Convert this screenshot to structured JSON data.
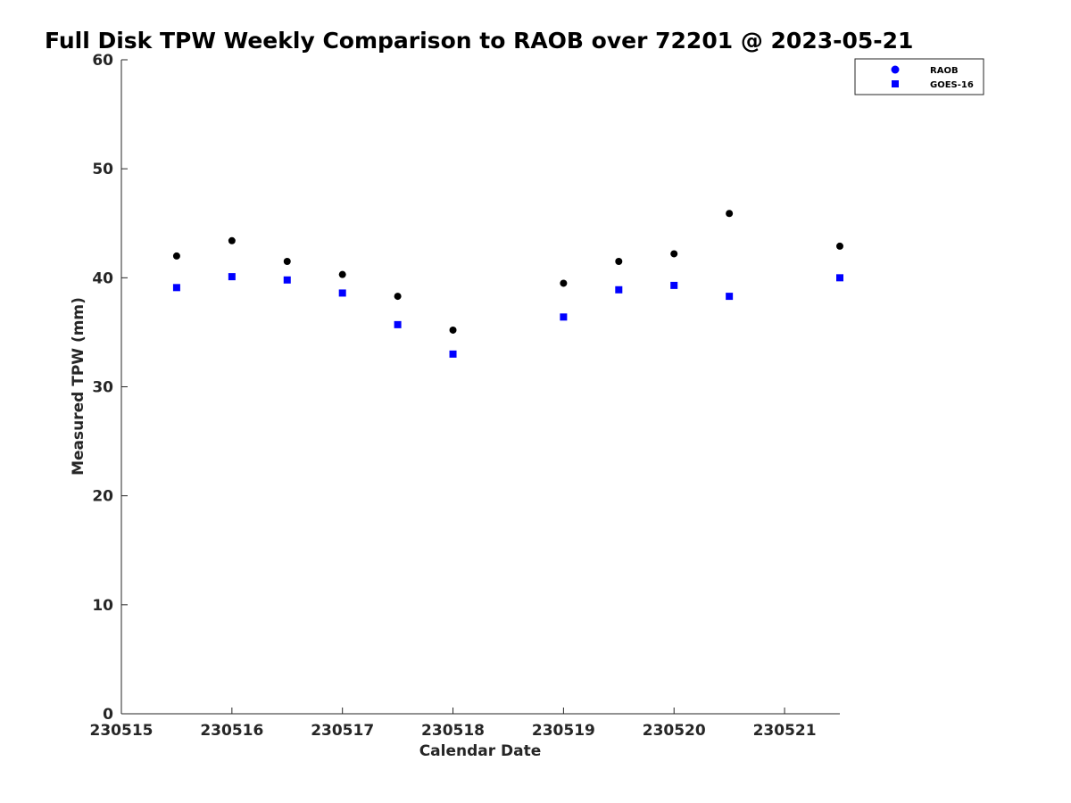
{
  "chart_data": {
    "type": "scatter",
    "title": "Full Disk TPW Weekly Comparison to RAOB over 72201 @ 2023-05-21",
    "xlabel": "Calendar Date",
    "ylabel": "Measured TPW (mm)",
    "xlim": [
      230515,
      230521.5
    ],
    "ylim": [
      0,
      60
    ],
    "x_ticks": [
      230515,
      230516,
      230517,
      230518,
      230519,
      230520,
      230521
    ],
    "x_tick_labels": [
      "230515",
      "230516",
      "230517",
      "230518",
      "230519",
      "230520",
      "230521"
    ],
    "y_ticks": [
      0,
      10,
      20,
      30,
      40,
      50,
      60
    ],
    "y_tick_labels": [
      "0",
      "10",
      "20",
      "30",
      "40",
      "50",
      "60"
    ],
    "grid": false,
    "legend_position": "top-right",
    "series": [
      {
        "name": "RAOB",
        "marker": "circle",
        "color": "#000000",
        "legend_color": "#0000ff",
        "x": [
          230515.5,
          230516,
          230516.5,
          230517,
          230517.5,
          230518,
          230519,
          230519.5,
          230520,
          230520.5,
          230521.5
        ],
        "y": [
          42.0,
          43.4,
          41.5,
          40.3,
          38.3,
          35.2,
          39.5,
          41.5,
          42.2,
          45.9,
          42.9
        ]
      },
      {
        "name": "GOES-16",
        "marker": "square",
        "color": "#0000ff",
        "legend_color": "#0000ff",
        "x": [
          230515.5,
          230516,
          230516.5,
          230517,
          230517.5,
          230518,
          230519,
          230519.5,
          230520,
          230520.5,
          230521.5
        ],
        "y": [
          39.1,
          40.1,
          39.8,
          38.6,
          35.7,
          33.0,
          36.4,
          38.9,
          39.3,
          38.3,
          40.0
        ]
      }
    ]
  }
}
